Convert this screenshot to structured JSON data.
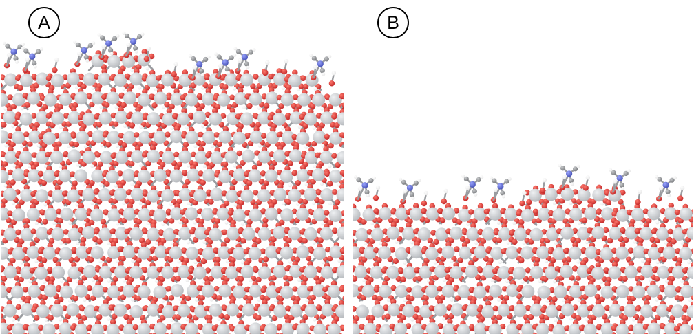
{
  "panels": [
    {
      "id": "a",
      "label": "A"
    },
    {
      "id": "b",
      "label": "B"
    }
  ],
  "colors": {
    "background": "#ffffff",
    "metal_atom": "#b9bcc0",
    "oxygen_atom": "#c42a2a",
    "hydrogen_atom": "#e8e8e8",
    "nitrogen_atom": "#4a55b8",
    "carbon_atom": "#7d7f82",
    "bond": "#9a9ca0"
  }
}
